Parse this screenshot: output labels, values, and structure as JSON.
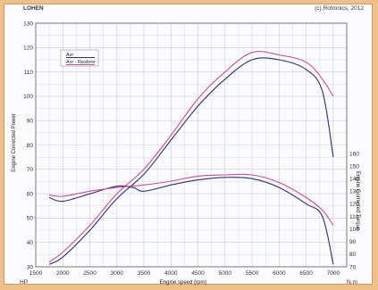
{
  "header": {
    "left": "LOHEN",
    "right": "(c) Rotronics, 2012"
  },
  "chart_data": {
    "type": "line",
    "xlabel": "Engine speed (rpm)",
    "ylabel_left": "Engine Corrected Power",
    "ylabel_right": "Engine Corrected Torque",
    "left_unit": "HP",
    "right_unit": "N.m",
    "xlim": [
      1500,
      7250
    ],
    "ylim_left": [
      30,
      130
    ],
    "ylim_right": [
      70,
      160
    ],
    "x_ticks": [
      1500,
      2000,
      2500,
      3000,
      3500,
      4000,
      4500,
      5000,
      5500,
      6000,
      6500,
      7000
    ],
    "y_left_ticks": [
      30,
      40,
      50,
      60,
      70,
      80,
      90,
      100,
      110,
      120,
      130
    ],
    "y_right_ticks": [
      70,
      80,
      90,
      100,
      110,
      120,
      130,
      140,
      150,
      160
    ],
    "grid": true,
    "legend": {
      "position": "top-left",
      "entries": [
        "Avr",
        "Avr - Restore"
      ]
    },
    "series": [
      {
        "name": "Avr",
        "axis": "left",
        "color": "#2b2f74",
        "x": [
          1750,
          2000,
          2500,
          3000,
          3500,
          4000,
          4500,
          5000,
          5500,
          6000,
          6500,
          6800,
          7000
        ],
        "y": [
          31,
          34,
          45,
          58,
          68,
          82,
          96,
          107,
          115,
          115,
          111,
          102,
          75
        ]
      },
      {
        "name": "Avr - Restore",
        "axis": "left",
        "color": "#c8508e",
        "x": [
          1750,
          2000,
          2500,
          3000,
          3500,
          4000,
          4500,
          5000,
          5500,
          6000,
          6500,
          6800,
          7000
        ],
        "y": [
          32,
          36,
          47,
          60,
          70,
          84,
          99,
          110,
          118,
          117,
          114,
          107,
          100
        ]
      },
      {
        "name": "Avr",
        "axis": "right",
        "color": "#2b2f74",
        "x": [
          1750,
          2000,
          2500,
          3000,
          3300,
          3500,
          4000,
          4500,
          5000,
          5500,
          6000,
          6500,
          6800,
          7000
        ],
        "y": [
          125,
          122,
          128,
          134,
          133,
          130,
          135,
          139,
          141,
          140,
          133,
          120,
          110,
          72
        ]
      },
      {
        "name": "Avr - Restore",
        "axis": "right",
        "color": "#c8508e",
        "x": [
          1750,
          2000,
          2500,
          3000,
          3500,
          4000,
          4500,
          5000,
          5500,
          6000,
          6500,
          6800,
          7000
        ],
        "y": [
          127,
          126,
          130,
          133,
          135,
          138,
          142,
          143,
          143,
          137,
          125,
          115,
          103
        ]
      }
    ]
  }
}
